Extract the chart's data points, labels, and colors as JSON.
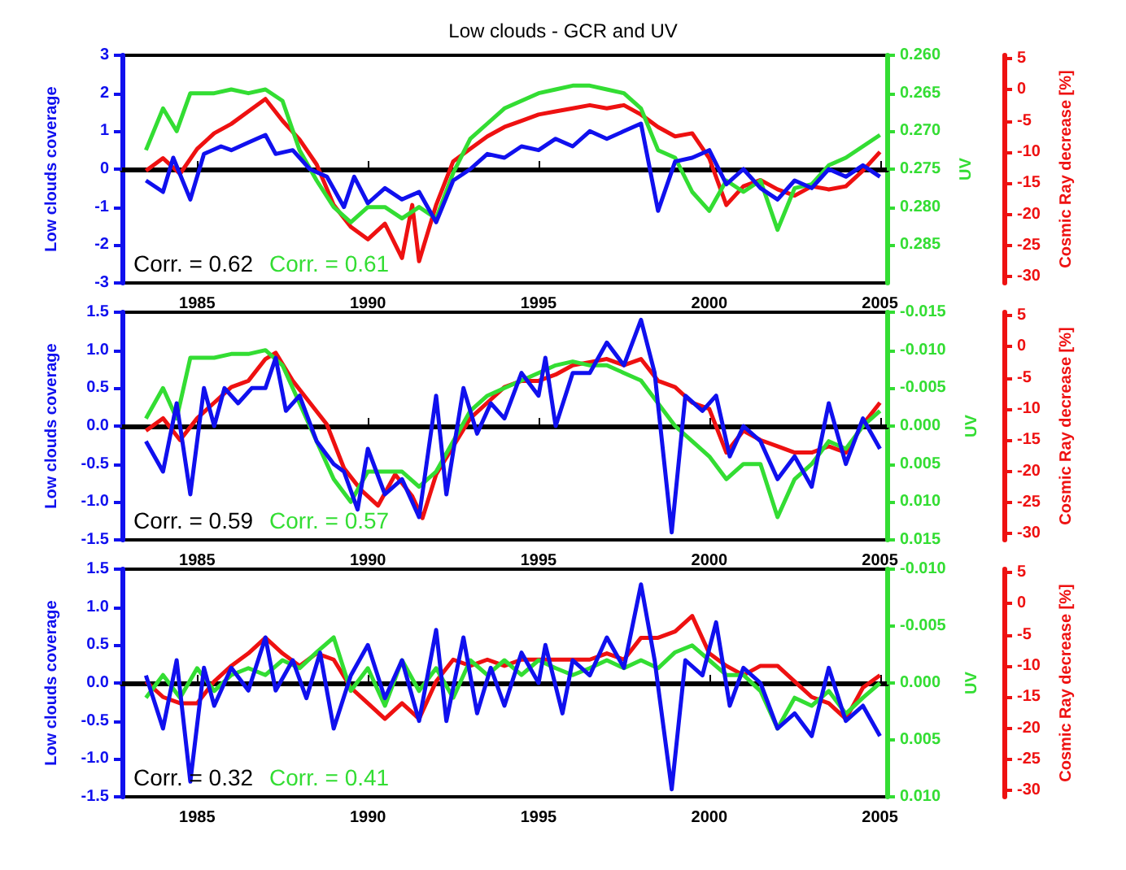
{
  "chart_data": [
    {
      "type": "line",
      "title": "Low clouds - GCR and UV",
      "ylabel": "Low clouds coverage",
      "y2label": "UV",
      "y3label": "Cosmic Ray decrease [%]",
      "annotations": [
        "Corr. = 0.62",
        "Corr. = 0.61"
      ],
      "xlim": [
        1982.8,
        2005.2
      ],
      "xticks": [
        1985,
        1990,
        1995,
        2000,
        2005
      ],
      "ylim": [
        -3,
        3
      ],
      "yticks": [
        -3,
        -2,
        -1,
        0,
        1,
        2,
        3
      ],
      "y2lim": [
        0.29,
        0.26
      ],
      "y2ticks": [
        {
          "value": 0.26,
          "label": "0.260"
        },
        {
          "value": 0.265,
          "label": "0.265"
        },
        {
          "value": 0.27,
          "label": "0.270"
        },
        {
          "value": 0.275,
          "label": "0.275"
        },
        {
          "value": 0.28,
          "label": "0.280"
        },
        {
          "value": 0.285,
          "label": "0.285"
        }
      ],
      "y3lim": [
        -31,
        5.5
      ],
      "y3ticks": [
        5,
        0,
        -5,
        -10,
        -15,
        -20,
        -25,
        -30
      ],
      "series": [
        {
          "color": "#1010ee",
          "x": [
            1983.5,
            1984,
            1984.3,
            1984.8,
            1985.2,
            1985.7,
            1986,
            1986.5,
            1987,
            1987.3,
            1987.8,
            1988.3,
            1988.8,
            1989.3,
            1989.6,
            1990,
            1990.5,
            1991,
            1991.5,
            1992,
            1992.5,
            1993,
            1993.5,
            1994,
            1994.5,
            1995,
            1995.5,
            1996,
            1996.5,
            1997,
            1997.5,
            1998,
            1998.5,
            1999,
            1999.5,
            2000,
            2000.5,
            2001,
            2001.5,
            2002,
            2002.5,
            2003,
            2003.5,
            2004,
            2004.5,
            2005
          ],
          "values": [
            -0.3,
            -0.6,
            0.3,
            -0.8,
            0.4,
            0.6,
            0.5,
            0.7,
            0.9,
            0.4,
            0.5,
            0,
            -0.2,
            -1.0,
            -0.2,
            -0.9,
            -0.5,
            -0.8,
            -0.6,
            -1.4,
            -0.3,
            0,
            0.4,
            0.3,
            0.6,
            0.5,
            0.8,
            0.6,
            1.0,
            0.8,
            1.0,
            1.2,
            -1.1,
            0.2,
            0.3,
            0.5,
            -0.4,
            0,
            -0.5,
            -0.8,
            -0.3,
            -0.5,
            0,
            -0.2,
            0.1,
            -0.2
          ]
        },
        {
          "color": "#33dd33",
          "axis": "y2",
          "x": [
            1983.5,
            1984,
            1984.4,
            1984.8,
            1985.5,
            1986,
            1986.5,
            1987,
            1987.5,
            1988,
            1988.5,
            1989,
            1989.5,
            1990,
            1990.5,
            1991,
            1991.5,
            1992,
            1992.5,
            1993,
            1993.5,
            1994,
            1994.5,
            1995,
            1995.5,
            1996,
            1996.5,
            1997,
            1997.5,
            1998,
            1998.5,
            1999,
            1999.5,
            2000,
            2000.5,
            2001,
            2001.5,
            2002,
            2002.5,
            2003,
            2003.5,
            2004,
            2004.5,
            2005
          ],
          "values": [
            0.2725,
            0.267,
            0.27,
            0.265,
            0.265,
            0.2645,
            0.265,
            0.2645,
            0.266,
            0.2725,
            0.2765,
            0.28,
            0.282,
            0.28,
            0.28,
            0.2815,
            0.28,
            0.2815,
            0.2755,
            0.271,
            0.269,
            0.267,
            0.266,
            0.265,
            0.2645,
            0.264,
            0.264,
            0.2645,
            0.265,
            0.267,
            0.2725,
            0.2735,
            0.278,
            0.2805,
            0.2765,
            0.278,
            0.2765,
            0.283,
            0.2775,
            0.277,
            0.2745,
            0.2735,
            0.272,
            0.2705
          ]
        },
        {
          "color": "#ee1111",
          "axis": "y3",
          "x": [
            1983.5,
            1984,
            1984.5,
            1985,
            1985.5,
            1986,
            1986.5,
            1987,
            1987.5,
            1988,
            1988.5,
            1989,
            1989.5,
            1990,
            1990.5,
            1991,
            1991.3,
            1991.5,
            1992,
            1992.5,
            1993,
            1993.5,
            1994,
            1994.5,
            1995,
            1995.5,
            1996,
            1996.5,
            1997,
            1997.5,
            1998,
            1998.5,
            1999,
            1999.5,
            2000,
            2000.5,
            2001,
            2001.5,
            2002,
            2002.5,
            2003,
            2003.5,
            2004,
            2004.5,
            2005
          ],
          "values": [
            -13,
            -11,
            -13.5,
            -9.5,
            -7,
            -5.5,
            -3.5,
            -1.5,
            -5,
            -8,
            -12,
            -18.5,
            -22,
            -24,
            -21.5,
            -27,
            -18.5,
            -27.5,
            -18.5,
            -11.5,
            -9.5,
            -7.5,
            -6,
            -5,
            -4,
            -3.5,
            -3,
            -2.5,
            -3,
            -2.5,
            -4,
            -6,
            -7.5,
            -7,
            -11,
            -18.5,
            -15.5,
            -14.5,
            -16,
            -17,
            -15.5,
            -16,
            -15.5,
            -13,
            -10
          ]
        }
      ]
    },
    {
      "type": "line",
      "ylabel": "Low clouds coverage",
      "y2label": "UV",
      "y3label": "Cosmic Ray decrease [%]",
      "annotations": [
        "Corr. = 0.59",
        "Corr. = 0.57"
      ],
      "xlim": [
        1982.8,
        2005.2
      ],
      "xticks": [
        1985,
        1990,
        1995,
        2000,
        2005
      ],
      "ylim": [
        -1.5,
        1.5
      ],
      "yticks": [
        {
          "value": -1.5,
          "label": "-1.5"
        },
        {
          "value": -1,
          "label": "-1.0"
        },
        {
          "value": -0.5,
          "label": "-0.5"
        },
        {
          "value": 0,
          "label": "0.0"
        },
        {
          "value": 0.5,
          "label": "0.5"
        },
        {
          "value": 1,
          "label": "1.0"
        },
        {
          "value": 1.5,
          "label": "1.5"
        }
      ],
      "y2lim": [
        0.015,
        -0.015
      ],
      "y2ticks": [
        {
          "value": -0.015,
          "label": "-0.015"
        },
        {
          "value": -0.01,
          "label": "-0.010"
        },
        {
          "value": -0.005,
          "label": "-0.005"
        },
        {
          "value": 0,
          "label": "0.000"
        },
        {
          "value": 0.005,
          "label": "0.005"
        },
        {
          "value": 0.01,
          "label": "0.010"
        },
        {
          "value": 0.015,
          "label": "0.015"
        }
      ],
      "y3lim": [
        -31,
        5.5
      ],
      "y3ticks": [
        5,
        0,
        -5,
        -10,
        -15,
        -20,
        -25,
        -30
      ],
      "series": [
        {
          "color": "#1010ee",
          "x": [
            1983.5,
            1984,
            1984.4,
            1984.8,
            1985.2,
            1985.5,
            1985.8,
            1986.2,
            1986.6,
            1987,
            1987.3,
            1987.6,
            1988,
            1988.5,
            1989,
            1989.3,
            1989.7,
            1990,
            1990.5,
            1991,
            1991.5,
            1992,
            1992.3,
            1992.8,
            1993.2,
            1993.6,
            1994,
            1994.5,
            1995,
            1995.2,
            1995.5,
            1996,
            1996.5,
            1997,
            1997.5,
            1998,
            1998.4,
            1998.9,
            1999.3,
            1999.8,
            2000.2,
            2000.6,
            2001,
            2001.5,
            2002,
            2002.5,
            2003,
            2003.5,
            2004,
            2004.5,
            2005
          ],
          "values": [
            -0.2,
            -0.6,
            0.3,
            -0.9,
            0.5,
            0,
            0.5,
            0.3,
            0.5,
            0.5,
            0.9,
            0.2,
            0.4,
            -0.2,
            -0.5,
            -0.6,
            -1.1,
            -0.3,
            -0.9,
            -0.7,
            -1.2,
            0.4,
            -0.9,
            0.5,
            -0.1,
            0.3,
            0.1,
            0.7,
            0.4,
            0.9,
            0,
            0.7,
            0.7,
            1.1,
            0.8,
            1.4,
            0.7,
            -1.4,
            0.4,
            0.2,
            0.4,
            -0.4,
            0,
            -0.2,
            -0.7,
            -0.4,
            -0.8,
            0.3,
            -0.5,
            0.1,
            -0.3
          ]
        },
        {
          "color": "#33dd33",
          "axis": "y2",
          "x": [
            1983.5,
            1984,
            1984.4,
            1984.8,
            1985.5,
            1986,
            1986.5,
            1987,
            1987.5,
            1988,
            1988.5,
            1989,
            1989.5,
            1990,
            1990.5,
            1991,
            1991.5,
            1992,
            1992.5,
            1993,
            1993.5,
            1994,
            1994.5,
            1995,
            1995.5,
            1996,
            1996.5,
            1997,
            1997.5,
            1998,
            1998.5,
            1999,
            1999.5,
            2000,
            2000.5,
            2001,
            2001.5,
            2002,
            2002.5,
            2003,
            2003.5,
            2004,
            2004.5,
            2005
          ],
          "values": [
            -0.001,
            -0.005,
            -0.001,
            -0.009,
            -0.009,
            -0.0095,
            -0.0095,
            -0.01,
            -0.008,
            -0.003,
            0.002,
            0.007,
            0.01,
            0.006,
            0.006,
            0.006,
            0.008,
            0.006,
            0.002,
            -0.002,
            -0.004,
            -0.005,
            -0.006,
            -0.007,
            -0.008,
            -0.0085,
            -0.008,
            -0.008,
            -0.007,
            -0.006,
            -0.003,
            0,
            0.002,
            0.004,
            0.007,
            0.005,
            0.005,
            0.012,
            0.007,
            0.005,
            0.002,
            0.003,
            0,
            -0.002
          ]
        },
        {
          "color": "#ee1111",
          "axis": "y3",
          "x": [
            1983.5,
            1984,
            1984.5,
            1985,
            1985.5,
            1986,
            1986.5,
            1987,
            1987.3,
            1987.8,
            1988.3,
            1988.8,
            1989.3,
            1989.8,
            1990.3,
            1990.8,
            1991.3,
            1991.6,
            1992,
            1992.5,
            1993,
            1993.5,
            1994,
            1994.5,
            1995,
            1995.5,
            1996,
            1996.5,
            1997,
            1997.5,
            1998,
            1998.5,
            1999,
            1999.5,
            2000,
            2000.5,
            2001,
            2001.5,
            2002,
            2002.5,
            2003,
            2003.5,
            2004,
            2004.5,
            2005
          ],
          "values": [
            -13.5,
            -11.5,
            -15,
            -11.5,
            -9,
            -6.5,
            -5.5,
            -2,
            -1,
            -5.5,
            -9,
            -12.5,
            -19.5,
            -23,
            -25.5,
            -20.5,
            -24,
            -27.5,
            -20.5,
            -16,
            -11.5,
            -9,
            -6.5,
            -5.5,
            -5.5,
            -4.5,
            -3,
            -2.5,
            -2,
            -3,
            -2,
            -5.5,
            -6.5,
            -9,
            -10,
            -17,
            -13.5,
            -15,
            -16,
            -17,
            -17,
            -16,
            -17,
            -12.5,
            -9
          ]
        }
      ]
    },
    {
      "type": "line",
      "ylabel": "Low clouds coverage",
      "y2label": "UV",
      "y3label": "Cosmic Ray decrease [%]",
      "annotations": [
        "Corr. = 0.32",
        "Corr. = 0.41"
      ],
      "xlim": [
        1982.8,
        2005.2
      ],
      "xticks": [
        1985,
        1990,
        1995,
        2000,
        2005
      ],
      "ylim": [
        -1.5,
        1.5
      ],
      "yticks": [
        {
          "value": -1.5,
          "label": "-1.5"
        },
        {
          "value": -1,
          "label": "-1.0"
        },
        {
          "value": -0.5,
          "label": "-0.5"
        },
        {
          "value": 0,
          "label": "0.0"
        },
        {
          "value": 0.5,
          "label": "0.5"
        },
        {
          "value": 1,
          "label": "1.0"
        },
        {
          "value": 1.5,
          "label": "1.5"
        }
      ],
      "y2lim": [
        0.01,
        -0.01
      ],
      "y2ticks": [
        {
          "value": -0.01,
          "label": "-0.010"
        },
        {
          "value": -0.005,
          "label": "-0.005"
        },
        {
          "value": 0,
          "label": "0.000"
        },
        {
          "value": 0.005,
          "label": "0.005"
        },
        {
          "value": 0.01,
          "label": "0.010"
        }
      ],
      "y3lim": [
        -31,
        5.5
      ],
      "y3ticks": [
        5,
        0,
        -5,
        -10,
        -15,
        -20,
        -25,
        -30
      ],
      "series": [
        {
          "color": "#1010ee",
          "x": [
            1983.5,
            1984,
            1984.4,
            1984.8,
            1985.2,
            1985.5,
            1986,
            1986.5,
            1987,
            1987.3,
            1987.8,
            1988.2,
            1988.6,
            1989,
            1989.5,
            1990,
            1990.5,
            1991,
            1991.5,
            1992,
            1992.3,
            1992.8,
            1993.2,
            1993.6,
            1994,
            1994.5,
            1995,
            1995.2,
            1995.7,
            1996,
            1996.5,
            1997,
            1997.5,
            1998,
            1998.4,
            1998.9,
            1999.3,
            1999.8,
            2000.2,
            2000.6,
            2001,
            2001.5,
            2002,
            2002.5,
            2003,
            2003.5,
            2004,
            2004.5,
            2005
          ],
          "values": [
            0.1,
            -0.6,
            0.3,
            -1.3,
            0.2,
            -0.3,
            0.2,
            -0.1,
            0.6,
            -0.1,
            0.3,
            -0.2,
            0.4,
            -0.6,
            0.1,
            0.5,
            -0.2,
            0.3,
            -0.5,
            0.7,
            -0.5,
            0.6,
            -0.4,
            0.2,
            -0.3,
            0.4,
            0,
            0.5,
            -0.4,
            0.3,
            0.1,
            0.6,
            0.2,
            1.3,
            0.3,
            -1.4,
            0.3,
            0.1,
            0.8,
            -0.3,
            0.2,
            0,
            -0.6,
            -0.4,
            -0.7,
            0.2,
            -0.5,
            -0.3,
            -0.7
          ]
        },
        {
          "color": "#33dd33",
          "axis": "y2",
          "x": [
            1983.5,
            1984,
            1984.5,
            1985,
            1985.5,
            1986,
            1986.5,
            1987,
            1987.5,
            1988,
            1988.5,
            1989,
            1989.5,
            1990,
            1990.5,
            1991,
            1991.5,
            1992,
            1992.5,
            1993,
            1993.5,
            1994,
            1994.5,
            1995,
            1995.5,
            1996,
            1996.5,
            1997,
            1997.5,
            1998,
            1998.5,
            1999,
            1999.5,
            2000,
            2000.5,
            2001,
            2001.5,
            2002,
            2002.5,
            2003,
            2003.5,
            2004,
            2004.5,
            2005
          ],
          "values": [
            0.0013,
            -0.0007,
            0.0013,
            -0.0013,
            0.0007,
            -0.0007,
            -0.0013,
            -0.0007,
            -0.002,
            -0.0013,
            -0.0027,
            -0.004,
            0.0007,
            -0.0013,
            0.002,
            -0.002,
            0.0007,
            -0.0013,
            0.0013,
            -0.002,
            -0.0007,
            -0.002,
            -0.0007,
            -0.002,
            -0.0013,
            -0.0007,
            -0.0013,
            -0.002,
            -0.0013,
            -0.002,
            -0.0013,
            -0.0027,
            -0.0033,
            -0.002,
            -0.0007,
            -0.0007,
            0.0007,
            0.004,
            0.0013,
            0.002,
            0.0007,
            0.0027,
            0.0013,
            0
          ]
        },
        {
          "color": "#ee1111",
          "axis": "y3",
          "x": [
            1983.5,
            1984,
            1984.5,
            1985,
            1985.5,
            1986,
            1986.5,
            1987,
            1987.5,
            1988,
            1988.5,
            1989,
            1989.5,
            1990,
            1990.5,
            1991,
            1991.5,
            1992,
            1992.5,
            1993,
            1993.5,
            1994,
            1994.5,
            1995,
            1995.5,
            1996,
            1996.5,
            1997,
            1997.5,
            1998,
            1998.5,
            1999,
            1999.5,
            2000,
            2000.5,
            2001,
            2001.5,
            2002,
            2002.5,
            2003,
            2003.5,
            2004,
            2004.5,
            2005
          ],
          "values": [
            -12.5,
            -15,
            -16,
            -16,
            -12.5,
            -10,
            -8,
            -5.5,
            -8,
            -10,
            -8,
            -9,
            -13.5,
            -16,
            -18.5,
            -16,
            -18.5,
            -12.5,
            -9,
            -10,
            -9,
            -10,
            -9,
            -9,
            -9,
            -9,
            -9,
            -8,
            -9,
            -5.5,
            -5.5,
            -4.5,
            -2,
            -8,
            -10,
            -11.5,
            -10,
            -10,
            -12.5,
            -15,
            -16,
            -18.5,
            -13.5,
            -11.5
          ]
        }
      ]
    }
  ]
}
